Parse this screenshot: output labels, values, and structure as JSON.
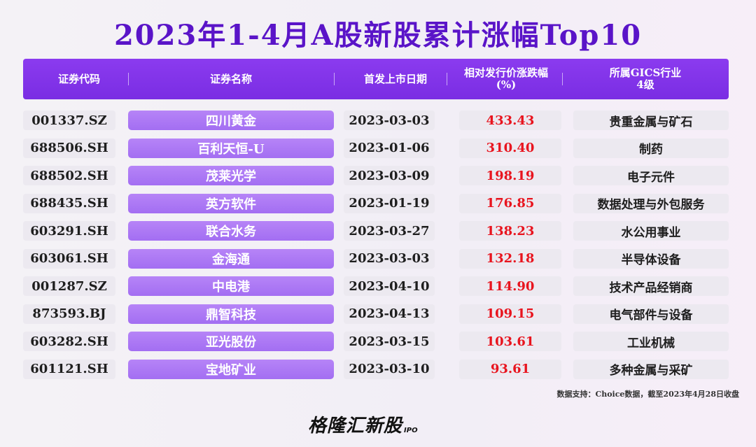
{
  "title": "2023年1-4月A股新股累计涨幅Top10",
  "columns": {
    "code": "证券代码",
    "name": "证券名称",
    "date": "首发上市日期",
    "pct_line1": "相对发行价涨跌幅",
    "pct_line2": "(%)",
    "ind_line1": "所属GICS行业",
    "ind_line2": "4级"
  },
  "rows": [
    {
      "code": "001337.SZ",
      "name": "四川黄金",
      "date": "2023-03-03",
      "pct": "433.43",
      "industry": "贵重金属与矿石"
    },
    {
      "code": "688506.SH",
      "name": "百利天恒-U",
      "date": "2023-01-06",
      "pct": "310.40",
      "industry": "制药"
    },
    {
      "code": "688502.SH",
      "name": "茂莱光学",
      "date": "2023-03-09",
      "pct": "198.19",
      "industry": "电子元件"
    },
    {
      "code": "688435.SH",
      "name": "英方软件",
      "date": "2023-01-19",
      "pct": "176.85",
      "industry": "数据处理与外包服务"
    },
    {
      "code": "603291.SH",
      "name": "联合水务",
      "date": "2023-03-27",
      "pct": "138.23",
      "industry": "水公用事业"
    },
    {
      "code": "603061.SH",
      "name": "金海通",
      "date": "2023-03-03",
      "pct": "132.18",
      "industry": "半导体设备"
    },
    {
      "code": "001287.SZ",
      "name": "中电港",
      "date": "2023-04-10",
      "pct": "114.90",
      "industry": "技术产品经销商"
    },
    {
      "code": "873593.BJ",
      "name": "鼎智科技",
      "date": "2023-04-13",
      "pct": "109.15",
      "industry": "电气部件与设备"
    },
    {
      "code": "603282.SH",
      "name": "亚光股份",
      "date": "2023-03-15",
      "pct": "103.61",
      "industry": "工业机械"
    },
    {
      "code": "601121.SH",
      "name": "宝地矿业",
      "date": "2023-03-10",
      "pct": "93.61",
      "industry": "多种金属与采矿"
    }
  ],
  "source": "数据支持：Choice数据，截至2023年4月28日收盘",
  "logo": {
    "main": "格隆汇新股",
    "tag": "IPO"
  },
  "colors": {
    "title": "#5a14c8",
    "header": "#8b3bef",
    "name_cell": "#a36ef2",
    "pct_text": "#e8141e"
  }
}
